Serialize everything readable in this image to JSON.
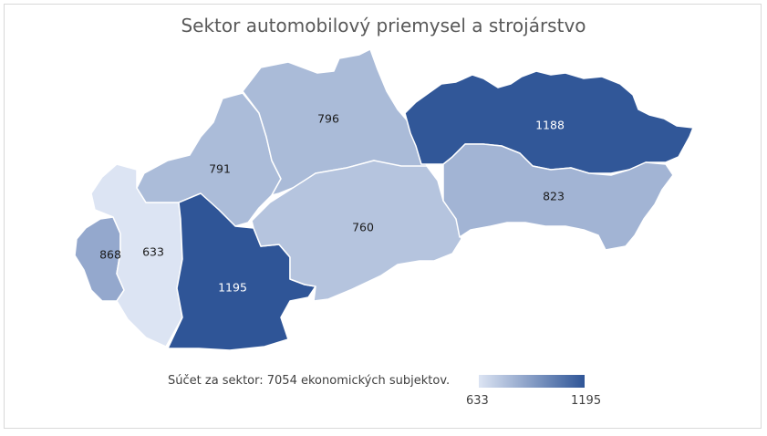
{
  "chart_data": {
    "type": "choropleth-map",
    "title": "Sektor automobilový priemysel a strojárstvo",
    "regions": [
      {
        "id": "ba",
        "value": 868
      },
      {
        "id": "tt",
        "value": 633
      },
      {
        "id": "tn",
        "value": 791
      },
      {
        "id": "nr",
        "value": 1195
      },
      {
        "id": "za",
        "value": 796
      },
      {
        "id": "bb",
        "value": 760
      },
      {
        "id": "po",
        "value": 1188
      },
      {
        "id": "ke",
        "value": 823
      }
    ],
    "color_scale": {
      "min": 633,
      "max": 1195,
      "min_color": "#dce4f3",
      "max_color": "#2f5597"
    },
    "legend": {
      "min_label": "633",
      "max_label": "1195"
    }
  },
  "note": "Súčet za sektor: 7054 ekonomických subjektov."
}
